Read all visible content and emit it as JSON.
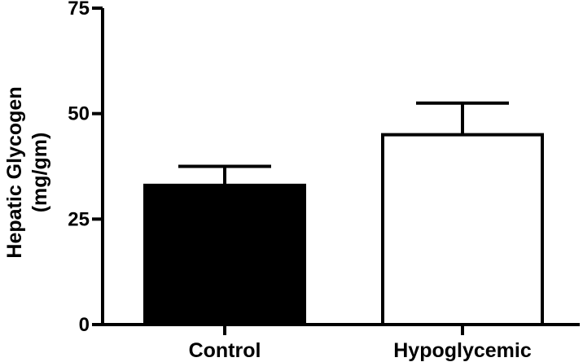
{
  "chart_data": {
    "type": "bar",
    "title": "",
    "xlabel": "",
    "ylabel": [
      "Hepatic Glycogen",
      "(mg/gm)"
    ],
    "ylim": [
      0,
      75
    ],
    "yticks": [
      0,
      25,
      50,
      75
    ],
    "ytick_labels": [
      "0",
      "25",
      "50",
      "75"
    ],
    "categories": [
      "Control",
      "Hypoglycemic"
    ],
    "values": [
      33,
      45
    ],
    "errors": [
      4.5,
      7.5
    ],
    "bar_fills": [
      "#000000",
      "#ffffff"
    ],
    "grid": false,
    "legend": "none"
  }
}
